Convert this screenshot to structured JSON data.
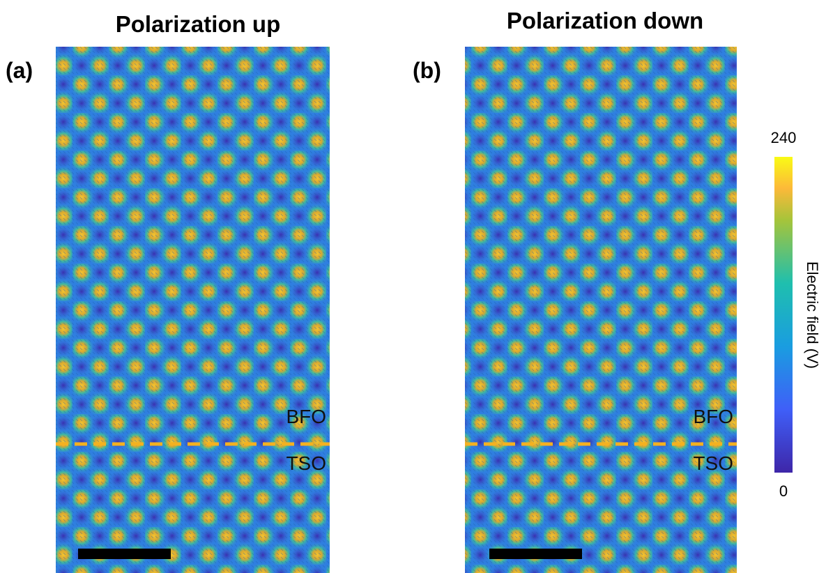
{
  "panels": [
    {
      "label": "(a)",
      "title": "Polarization up",
      "upper_region": "BFO",
      "lower_region": "TSO"
    },
    {
      "label": "(b)",
      "title": "Polarization down",
      "upper_region": "BFO",
      "lower_region": "TSO"
    }
  ],
  "colorbar": {
    "label": "Electric field (V)",
    "max": 240,
    "min": 0
  }
}
